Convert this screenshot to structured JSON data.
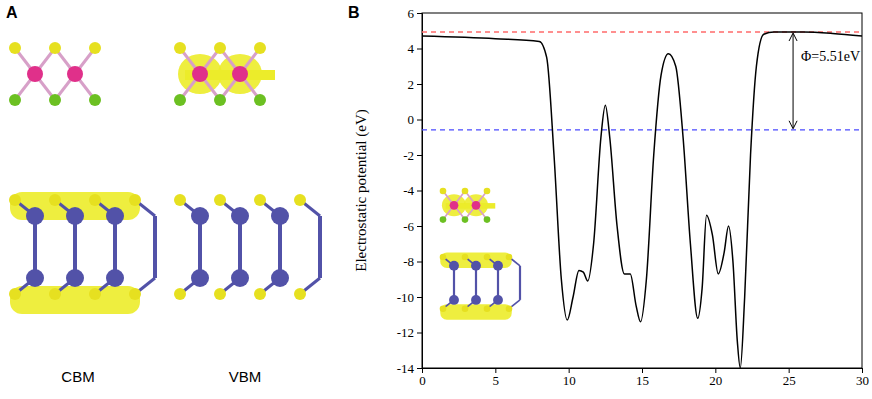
{
  "chart_data": {
    "type": "line",
    "y_label": "Electrostatic potential (eV)",
    "x": [
      0,
      5,
      8,
      8.5,
      9,
      9.5,
      9.9,
      10.3,
      10.7,
      11,
      11.3,
      11.7,
      12.2,
      12.5,
      12.8,
      13.3,
      13.8,
      14.2,
      14.6,
      14.9,
      15.3,
      15.8,
      16.3,
      16.8,
      17.3,
      17.8,
      18.3,
      18.8,
      19.1,
      19.4,
      19.8,
      20.2,
      20.6,
      20.9,
      21.2,
      21.5,
      21.7,
      22,
      22.4,
      22.8,
      23.3,
      24,
      26,
      28,
      30
    ],
    "values": [
      4.7,
      4.55,
      4.4,
      3.5,
      -2,
      -9,
      -11.3,
      -10,
      -8.5,
      -8.6,
      -9.1,
      -7,
      -1,
      0.8,
      -1,
      -6,
      -8.7,
      -8.7,
      -10.5,
      -11.4,
      -9,
      -2,
      2.5,
      3.7,
      3,
      -1,
      -7,
      -11.2,
      -9.5,
      -5.4,
      -6.5,
      -8.7,
      -7.5,
      -6,
      -8,
      -12.5,
      -14,
      -10,
      -2,
      3,
      4.8,
      4.93,
      4.93,
      4.85,
      4.7
    ],
    "color": "#000000",
    "xlim": [
      0,
      30
    ],
    "xticks": [
      0,
      5,
      10,
      15,
      20,
      25,
      30
    ],
    "ylim": [
      -14,
      6
    ],
    "yticks": [
      -14,
      -12,
      -10,
      -8,
      -6,
      -4,
      -2,
      0,
      2,
      4,
      6
    ],
    "reference_lines": [
      {
        "value": 4.93,
        "color": "#ff6b6b",
        "line_style": "dashed"
      },
      {
        "value": -0.58,
        "color": "#4a4aff",
        "line_style": "dashed"
      }
    ],
    "annotations": [
      {
        "text": "Φ=5.51eV"
      },
      {
        "text": "A"
      },
      {
        "text": "B"
      },
      {
        "text": "CBM"
      },
      {
        "text": "VBM"
      }
    ]
  }
}
